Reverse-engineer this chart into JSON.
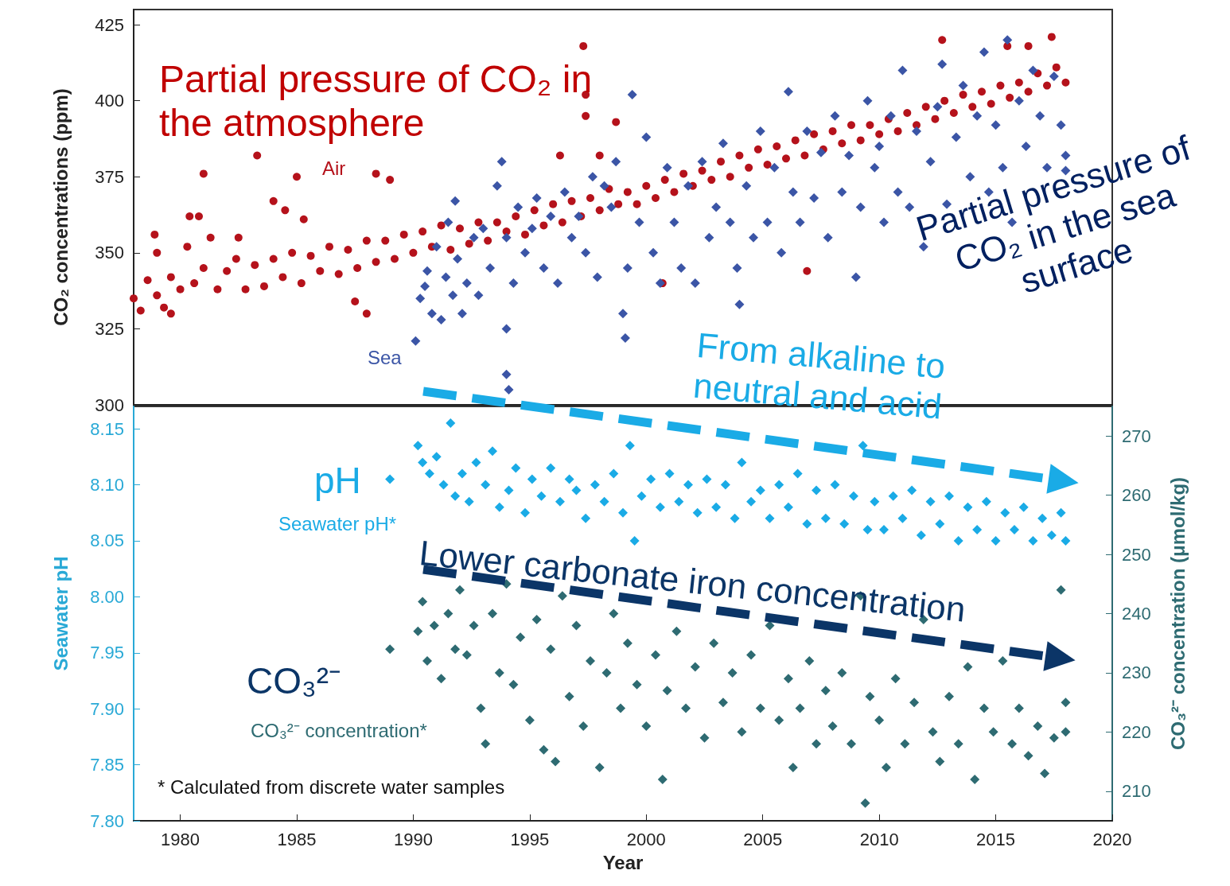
{
  "chart_data": [
    {
      "type": "scatter",
      "ylabel": "CO₂ concentrations (ppm)",
      "xlim": [
        1978,
        2020
      ],
      "ylim": [
        300,
        430
      ],
      "yticks": [
        300,
        325,
        350,
        375,
        400,
        425
      ],
      "tick_labels": "y",
      "marker": "diamond",
      "annotations": [
        "Partial pressure of CO₂ in the atmosphere",
        "Partial pressure of CO₂ in the sea surface"
      ],
      "series": [
        {
          "name": "Air",
          "color": "#b5121b",
          "marker": "circle",
          "x": [
            1978.0,
            1978.3,
            1978.6,
            1979.0,
            1979.3,
            1979.6,
            1980.0,
            1980.3,
            1980.6,
            1981.0,
            1981.3,
            1981.6,
            1982.0,
            1982.4,
            1982.8,
            1983.2,
            1983.6,
            1984.0,
            1984.4,
            1984.8,
            1985.2,
            1985.6,
            1986.0,
            1986.4,
            1986.8,
            1987.2,
            1987.6,
            1988.0,
            1988.4,
            1988.8,
            1989.2,
            1989.6,
            1990.0,
            1990.4,
            1990.8,
            1991.2,
            1991.6,
            1992.0,
            1992.4,
            1992.8,
            1993.2,
            1993.6,
            1994.0,
            1994.4,
            1994.8,
            1995.2,
            1995.6,
            1996.0,
            1996.4,
            1996.8,
            1997.2,
            1997.6,
            1998.0,
            1998.4,
            1998.8,
            1999.2,
            1999.6,
            2000.0,
            2000.4,
            2000.8,
            2001.2,
            2001.6,
            2002.0,
            2002.4,
            2002.8,
            2003.2,
            2003.6,
            2004.0,
            2004.4,
            2004.8,
            2005.2,
            2005.6,
            2006.0,
            2006.4,
            2006.8,
            2007.2,
            2007.6,
            2008.0,
            2008.4,
            2008.8,
            2009.2,
            2009.6,
            2010.0,
            2010.4,
            2010.8,
            2011.2,
            2011.6,
            2012.0,
            2012.4,
            2012.8,
            2013.2,
            2013.6,
            2014.0,
            2014.4,
            2014.8,
            2015.2,
            2015.6,
            2016.0,
            2016.4,
            2016.8,
            2017.2,
            2017.6,
            2018.0,
            1981.0,
            1983.3,
            1985.0,
            1984.0,
            1984.5,
            1985.3,
            1988.4,
            1989.0,
            1980.4,
            1980.8,
            1979.0,
            1978.9,
            1982.5,
            1987.5,
            1988.0,
            1979.6,
            1997.3,
            1997.4,
            1997.4,
            1998.0,
            1998.7,
            1996.3,
            2000.7,
            2006.9,
            2012.7,
            2015.5,
            2016.4,
            2017.4
          ],
          "values": [
            335,
            331,
            341,
            336,
            332,
            342,
            338,
            352,
            340,
            345,
            355,
            338,
            344,
            348,
            338,
            346,
            339,
            348,
            342,
            350,
            340,
            349,
            344,
            352,
            343,
            351,
            345,
            354,
            347,
            354,
            348,
            356,
            350,
            357,
            352,
            359,
            351,
            358,
            353,
            360,
            354,
            360,
            357,
            362,
            356,
            364,
            359,
            366,
            360,
            367,
            362,
            368,
            364,
            371,
            366,
            370,
            366,
            372,
            368,
            374,
            370,
            376,
            372,
            377,
            374,
            380,
            375,
            382,
            378,
            384,
            379,
            385,
            381,
            387,
            382,
            389,
            384,
            390,
            386,
            392,
            387,
            392,
            389,
            394,
            390,
            396,
            392,
            398,
            394,
            400,
            396,
            402,
            398,
            403,
            399,
            405,
            401,
            406,
            403,
            409,
            405,
            411,
            406,
            376,
            382,
            375,
            367,
            364,
            361,
            376,
            374,
            362,
            362,
            350,
            356,
            355,
            334,
            330,
            330,
            418,
            402,
            395,
            382,
            393,
            382,
            340,
            344,
            420,
            418,
            418,
            421
          ]
        },
        {
          "name": "Sea",
          "color": "#3b55a6",
          "x": [
            1990.1,
            1990.3,
            1990.5,
            1990.6,
            1990.8,
            1991.0,
            1991.2,
            1991.4,
            1991.5,
            1991.7,
            1991.8,
            1991.9,
            1992.1,
            1992.3,
            1992.6,
            1992.8,
            1993.0,
            1993.3,
            1993.6,
            1993.8,
            1994.0,
            1994.0,
            1994.0,
            1994.1,
            1994.3,
            1994.5,
            1994.8,
            1995.1,
            1995.3,
            1995.6,
            1995.9,
            1996.2,
            1996.5,
            1996.8,
            1997.1,
            1997.4,
            1997.7,
            1997.9,
            1998.2,
            1998.5,
            1998.7,
            1999.0,
            1999.1,
            1999.2,
            1999.4,
            1999.7,
            2000.0,
            2000.3,
            2000.6,
            2000.9,
            2001.2,
            2001.5,
            2001.8,
            2002.1,
            2002.4,
            2002.7,
            2003.0,
            2003.3,
            2003.6,
            2003.9,
            2004.0,
            2004.3,
            2004.6,
            2004.9,
            2005.2,
            2005.5,
            2005.8,
            2006.1,
            2006.3,
            2006.6,
            2006.9,
            2007.2,
            2007.5,
            2007.8,
            2008.1,
            2008.4,
            2008.7,
            2009.0,
            2009.2,
            2009.5,
            2009.8,
            2010.0,
            2010.2,
            2010.5,
            2010.8,
            2011.0,
            2011.3,
            2011.6,
            2011.9,
            2012.2,
            2012.5,
            2012.7,
            2012.9,
            2013.3,
            2013.6,
            2013.9,
            2014.2,
            2014.5,
            2014.7,
            2015.0,
            2015.3,
            2015.5,
            2015.7,
            2016.0,
            2016.3,
            2016.6,
            2016.9,
            2017.2,
            2017.5,
            2017.8,
            2018.0,
            2018.0
          ],
          "values": [
            321,
            335,
            339,
            344,
            330,
            352,
            328,
            342,
            360,
            336,
            367,
            348,
            330,
            340,
            355,
            336,
            358,
            345,
            372,
            380,
            355,
            325,
            310,
            305,
            340,
            365,
            350,
            358,
            368,
            345,
            362,
            340,
            370,
            355,
            362,
            350,
            375,
            342,
            372,
            365,
            380,
            330,
            322,
            345,
            402,
            360,
            388,
            350,
            340,
            378,
            360,
            345,
            372,
            340,
            380,
            355,
            365,
            386,
            360,
            345,
            333,
            372,
            355,
            390,
            360,
            378,
            350,
            403,
            370,
            360,
            390,
            368,
            383,
            355,
            395,
            370,
            382,
            342,
            365,
            400,
            378,
            385,
            360,
            395,
            370,
            410,
            365,
            390,
            352,
            380,
            398,
            412,
            366,
            388,
            405,
            375,
            395,
            416,
            370,
            392,
            378,
            420,
            360,
            400,
            385,
            410,
            395,
            378,
            408,
            392,
            382,
            377
          ]
        }
      ]
    },
    {
      "type": "scatter",
      "xlabel": "Year",
      "ylabel": "Seawater pH",
      "y2label": "CO₃²⁻ concentration (μmol/kg)",
      "xlim": [
        1978,
        2020
      ],
      "xticks": [
        1980,
        1985,
        1990,
        1995,
        2000,
        2005,
        2010,
        2015,
        2020
      ],
      "ylim": [
        7.8,
        8.17
      ],
      "yticks": [
        {
          "value": 7.8,
          "label": "7.80"
        },
        7.85,
        {
          "value": 7.9,
          "label": "7.90"
        },
        7.95,
        {
          "value": 8.0,
          "label": "8.00"
        },
        8.05,
        {
          "value": 8.1,
          "label": "8.10"
        },
        8.15
      ],
      "y2lim": [
        205,
        275
      ],
      "y2ticks": [
        210,
        220,
        230,
        240,
        250,
        260,
        270
      ],
      "marker": "diamond",
      "annotations": [
        "From alkaline to neutral and acid",
        "pH",
        "Lower carbonate iron concentration",
        "CO₃²⁻",
        "* Calculated from discrete water samples"
      ],
      "series": [
        {
          "name": "Seawater pH*",
          "color": "#1aabe6",
          "x": [
            1989.0,
            1990.2,
            1990.4,
            1990.7,
            1991.0,
            1991.3,
            1991.6,
            1991.8,
            1992.1,
            1992.4,
            1992.7,
            1993.1,
            1993.4,
            1993.7,
            1994.1,
            1994.4,
            1994.8,
            1995.1,
            1995.5,
            1995.9,
            1996.3,
            1996.7,
            1997.0,
            1997.4,
            1997.8,
            1998.2,
            1998.6,
            1999.0,
            1999.3,
            1999.5,
            1999.8,
            2000.2,
            2000.6,
            2001.0,
            2001.4,
            2001.8,
            2002.2,
            2002.6,
            2003.0,
            2003.4,
            2003.8,
            2004.1,
            2004.5,
            2004.9,
            2005.3,
            2005.7,
            2006.1,
            2006.5,
            2006.9,
            2007.3,
            2007.7,
            2008.1,
            2008.5,
            2008.9,
            2009.3,
            2009.5,
            2009.8,
            2010.2,
            2010.6,
            2011.0,
            2011.4,
            2011.8,
            2012.2,
            2012.6,
            2013.0,
            2013.4,
            2013.8,
            2014.2,
            2014.6,
            2015.0,
            2015.4,
            2015.8,
            2016.2,
            2016.6,
            2017.0,
            2017.4,
            2017.8,
            2018.0
          ],
          "values": [
            8.105,
            8.135,
            8.12,
            8.11,
            8.125,
            8.1,
            8.155,
            8.09,
            8.11,
            8.085,
            8.12,
            8.1,
            8.13,
            8.08,
            8.095,
            8.115,
            8.075,
            8.105,
            8.09,
            8.115,
            8.085,
            8.105,
            8.095,
            8.07,
            8.1,
            8.085,
            8.11,
            8.075,
            8.135,
            8.05,
            8.09,
            8.105,
            8.08,
            8.11,
            8.085,
            8.1,
            8.075,
            8.105,
            8.08,
            8.1,
            8.07,
            8.12,
            8.085,
            8.095,
            8.07,
            8.1,
            8.08,
            8.11,
            8.065,
            8.095,
            8.07,
            8.1,
            8.065,
            8.09,
            8.135,
            8.06,
            8.085,
            8.06,
            8.09,
            8.07,
            8.095,
            8.055,
            8.085,
            8.065,
            8.09,
            8.05,
            8.08,
            8.06,
            8.085,
            8.05,
            8.075,
            8.06,
            8.08,
            8.05,
            8.07,
            8.055,
            8.075,
            8.05
          ]
        },
        {
          "name": "CO₃²⁻ concentration*",
          "color": "#2e6b72",
          "axis": "y2",
          "x": [
            1989.0,
            1990.2,
            1990.4,
            1990.6,
            1990.9,
            1991.2,
            1991.5,
            1991.8,
            1992.0,
            1992.3,
            1992.6,
            1992.9,
            1993.1,
            1993.4,
            1993.7,
            1994.0,
            1994.3,
            1994.6,
            1995.0,
            1995.3,
            1995.6,
            1995.9,
            1996.1,
            1996.4,
            1996.7,
            1997.0,
            1997.3,
            1997.6,
            1998.0,
            1998.3,
            1998.6,
            1998.9,
            1999.2,
            1999.6,
            2000.0,
            2000.4,
            2000.7,
            2000.9,
            2001.3,
            2001.7,
            2002.1,
            2002.5,
            2002.9,
            2003.3,
            2003.7,
            2004.1,
            2004.5,
            2004.9,
            2005.3,
            2005.7,
            2006.1,
            2006.3,
            2006.6,
            2007.0,
            2007.3,
            2007.7,
            2008.0,
            2008.4,
            2008.8,
            2009.2,
            2009.4,
            2009.6,
            2010.0,
            2010.3,
            2010.7,
            2011.1,
            2011.5,
            2011.9,
            2012.3,
            2012.6,
            2013.0,
            2013.4,
            2013.8,
            2014.1,
            2014.5,
            2014.9,
            2015.3,
            2015.7,
            2016.0,
            2016.4,
            2016.8,
            2017.1,
            2017.5,
            2017.8,
            2018.0,
            2018.0
          ],
          "values": [
            234,
            237,
            242,
            232,
            238,
            229,
            240,
            234,
            244,
            233,
            238,
            224,
            218,
            240,
            230,
            245,
            228,
            236,
            222,
            239,
            217,
            234,
            215,
            243,
            226,
            238,
            221,
            232,
            214,
            230,
            240,
            224,
            235,
            228,
            221,
            233,
            212,
            227,
            237,
            224,
            231,
            219,
            235,
            225,
            230,
            220,
            233,
            224,
            238,
            222,
            229,
            214,
            224,
            232,
            218,
            227,
            221,
            230,
            218,
            243,
            208,
            226,
            222,
            214,
            229,
            218,
            225,
            239,
            220,
            215,
            226,
            218,
            231,
            212,
            224,
            220,
            232,
            218,
            224,
            216,
            221,
            213,
            219,
            244,
            225,
            220
          ]
        }
      ]
    }
  ]
}
